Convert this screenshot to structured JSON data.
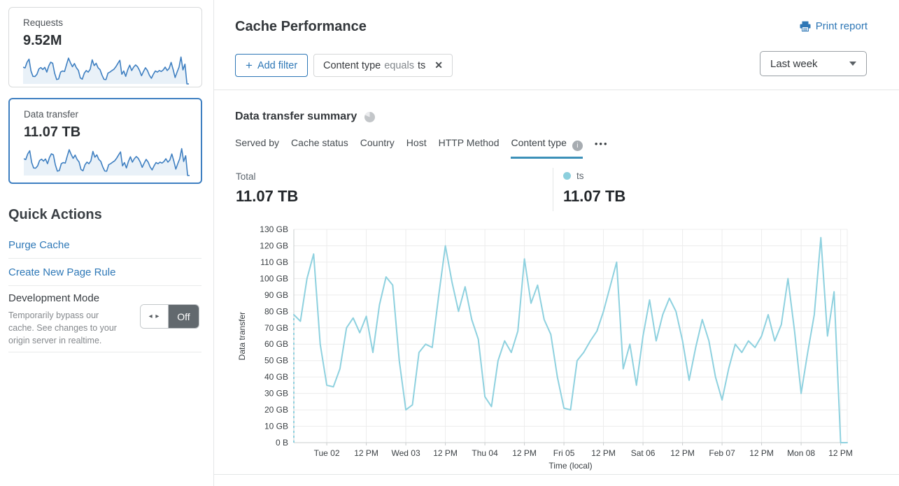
{
  "colors": {
    "accent_blue": "#2e77b6",
    "selected_card_border": "#3e7fc1",
    "sparkline_stroke": "#3e7fc1",
    "sparkline_fill": "#e9f1f8",
    "chart_line": "#8ed1df",
    "tab_underline": "#3c90b8",
    "toggle_off_bg": "#62696e",
    "legend_dot": "#8ccfdd"
  },
  "glyphs": {
    "plus": "+",
    "close": "✕",
    "info": "i",
    "ellipsis": "•••",
    "toggle_arrows": "◂ ▸"
  },
  "sidebar": {
    "requests_card": {
      "label": "Requests",
      "value": "9.52M"
    },
    "data_transfer_card": {
      "label": "Data transfer",
      "value": "11.07 TB"
    },
    "quick_actions": {
      "title": "Quick Actions",
      "links": [
        "Purge Cache",
        "Create New Page Rule"
      ],
      "dev_mode": {
        "title": "Development Mode",
        "description": "Temporarily bypass our cache. See changes to your origin server in realtime.",
        "state": "Off"
      }
    }
  },
  "header": {
    "title": "Cache Performance",
    "print_label": "Print report"
  },
  "filters": {
    "add_label": "Add filter",
    "chip": {
      "field": "Content type",
      "operator": "equals",
      "value": "ts"
    },
    "time_range": "Last week"
  },
  "summary": {
    "title": "Data transfer summary",
    "tabs": [
      {
        "label": "Served by",
        "active": false
      },
      {
        "label": "Cache status",
        "active": false
      },
      {
        "label": "Country",
        "active": false
      },
      {
        "label": "Host",
        "active": false
      },
      {
        "label": "HTTP Method",
        "active": false
      },
      {
        "label": "Content type",
        "active": true,
        "has_info": true
      }
    ],
    "total_label": "Total",
    "total_value": "11.07 TB",
    "legend": {
      "name": "ts",
      "value": "11.07 TB",
      "color": "#8ccfdd"
    }
  },
  "chart_data": {
    "type": "line",
    "title": "",
    "xlabel": "Time (local)",
    "ylabel": "Data transfer",
    "unit": "GB",
    "ylim": [
      0,
      130
    ],
    "grid": true,
    "y_tick_labels": [
      "0 B",
      "10 GB",
      "20 GB",
      "30 GB",
      "40 GB",
      "50 GB",
      "60 GB",
      "70 GB",
      "80 GB",
      "90 GB",
      "100 GB",
      "110 GB",
      "120 GB",
      "130 GB"
    ],
    "x_tick_labels": [
      "Tue 02",
      "12 PM",
      "Wed 03",
      "12 PM",
      "Thu 04",
      "12 PM",
      "Fri 05",
      "12 PM",
      "Sat 06",
      "12 PM",
      "Feb 07",
      "12 PM",
      "Mon 08",
      "12 PM"
    ],
    "x_tick_first_index": 5,
    "x_tick_index_step": 6,
    "interval_hours": 2,
    "first_point_dashed_from_zero": true,
    "series": [
      {
        "name": "ts",
        "color": "#8ed1df",
        "values_gb": [
          78,
          74,
          100,
          115,
          60,
          35,
          34,
          45,
          70,
          76,
          67,
          77,
          55,
          84,
          101,
          96,
          50,
          20,
          23,
          55,
          60,
          58,
          90,
          120,
          98,
          80,
          95,
          75,
          63,
          28,
          22,
          50,
          62,
          55,
          68,
          112,
          85,
          96,
          75,
          66,
          40,
          21,
          20,
          50,
          55,
          62,
          68,
          80,
          95,
          110,
          45,
          60,
          35,
          65,
          87,
          62,
          78,
          88,
          80,
          62,
          38,
          58,
          75,
          62,
          40,
          26,
          45,
          60,
          55,
          62,
          58,
          65,
          78,
          62,
          72,
          100,
          68,
          30,
          55,
          78,
          125,
          65,
          92,
          0,
          0
        ]
      }
    ]
  }
}
